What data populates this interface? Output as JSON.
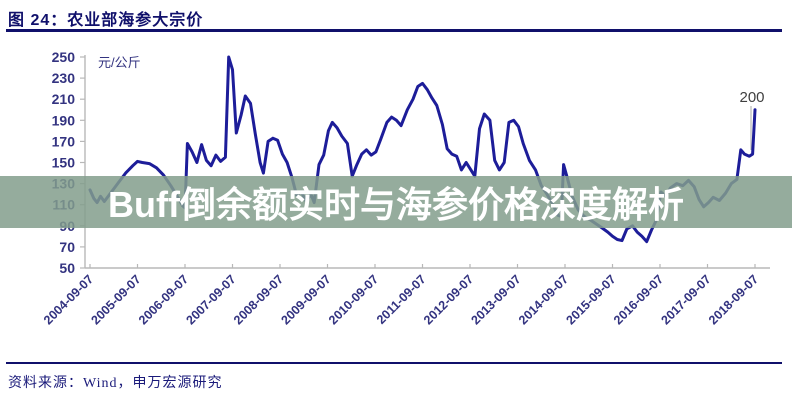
{
  "header": {
    "title": "图 24：农业部海参大宗价"
  },
  "overlay": {
    "text": "Buff倒余额实时与海参价格深度解析",
    "band_color": "#839e8c",
    "text_color": "#ffffff"
  },
  "footer": {
    "source": "资料来源：Wind，申万宏源研究"
  },
  "colors": {
    "line": "#1d1d99",
    "axis": "#b8b8b8",
    "tick_label": "#333380",
    "navy": "#10106b",
    "data_label": "#3f3f3f",
    "leader": "#aaaaaa"
  },
  "chart_data": {
    "type": "line",
    "title": "农业部海参大宗价",
    "ylabel": "元/公斤",
    "ylim": [
      50,
      250
    ],
    "yticks": [
      250,
      230,
      210,
      190,
      170,
      150,
      130,
      110,
      90,
      70,
      50
    ],
    "xticks": [
      "2004-09-07",
      "2005-09-07",
      "2006-09-07",
      "2007-09-07",
      "2008-09-07",
      "2009-09-07",
      "2010-09-07",
      "2011-09-07",
      "2012-09-07",
      "2013-09-07",
      "2014-09-07",
      "2015-09-07",
      "2016-09-07",
      "2017-09-07",
      "2018-09-07"
    ],
    "grid": false,
    "legend": "none",
    "end_label": {
      "text": "200",
      "value": 200
    },
    "series": [
      {
        "name": "农业部海参大宗价 (元/公斤)",
        "points": [
          [
            0,
            124
          ],
          [
            0.08,
            116
          ],
          [
            0.15,
            112
          ],
          [
            0.22,
            118
          ],
          [
            0.3,
            113
          ],
          [
            0.45,
            122
          ],
          [
            0.6,
            131
          ],
          [
            0.75,
            140
          ],
          [
            0.9,
            147
          ],
          [
            1.0,
            151
          ],
          [
            1.1,
            150
          ],
          [
            1.25,
            149
          ],
          [
            1.4,
            145
          ],
          [
            1.55,
            138
          ],
          [
            1.7,
            128
          ],
          [
            1.85,
            117
          ],
          [
            1.95,
            109
          ],
          [
            2.0,
            107
          ],
          [
            2.05,
            168
          ],
          [
            2.15,
            160
          ],
          [
            2.25,
            150
          ],
          [
            2.35,
            167
          ],
          [
            2.45,
            152
          ],
          [
            2.55,
            147
          ],
          [
            2.65,
            157
          ],
          [
            2.75,
            151
          ],
          [
            2.85,
            155
          ],
          [
            2.92,
            250
          ],
          [
            3.0,
            238
          ],
          [
            3.08,
            178
          ],
          [
            3.18,
            195
          ],
          [
            3.27,
            213
          ],
          [
            3.38,
            206
          ],
          [
            3.48,
            177
          ],
          [
            3.58,
            150
          ],
          [
            3.65,
            140
          ],
          [
            3.75,
            170
          ],
          [
            3.85,
            173
          ],
          [
            3.95,
            171
          ],
          [
            4.05,
            158
          ],
          [
            4.15,
            150
          ],
          [
            4.25,
            136
          ],
          [
            4.35,
            119
          ],
          [
            4.45,
            122
          ],
          [
            4.55,
            113
          ],
          [
            4.65,
            120
          ],
          [
            4.72,
            112
          ],
          [
            4.82,
            148
          ],
          [
            4.92,
            157
          ],
          [
            5.02,
            180
          ],
          [
            5.1,
            188
          ],
          [
            5.2,
            183
          ],
          [
            5.3,
            175
          ],
          [
            5.42,
            168
          ],
          [
            5.52,
            137
          ],
          [
            5.62,
            148
          ],
          [
            5.72,
            158
          ],
          [
            5.82,
            162
          ],
          [
            5.92,
            157
          ],
          [
            6.02,
            160
          ],
          [
            6.12,
            172
          ],
          [
            6.25,
            188
          ],
          [
            6.35,
            193
          ],
          [
            6.45,
            190
          ],
          [
            6.55,
            185
          ],
          [
            6.68,
            200
          ],
          [
            6.8,
            210
          ],
          [
            6.9,
            222
          ],
          [
            7.0,
            225
          ],
          [
            7.1,
            219
          ],
          [
            7.2,
            211
          ],
          [
            7.3,
            204
          ],
          [
            7.42,
            186
          ],
          [
            7.52,
            163
          ],
          [
            7.62,
            158
          ],
          [
            7.72,
            156
          ],
          [
            7.82,
            143
          ],
          [
            7.92,
            150
          ],
          [
            8.02,
            143
          ],
          [
            8.1,
            137
          ],
          [
            8.2,
            182
          ],
          [
            8.3,
            196
          ],
          [
            8.42,
            190
          ],
          [
            8.52,
            152
          ],
          [
            8.62,
            143
          ],
          [
            8.72,
            150
          ],
          [
            8.82,
            188
          ],
          [
            8.92,
            190
          ],
          [
            9.02,
            184
          ],
          [
            9.12,
            168
          ],
          [
            9.25,
            152
          ],
          [
            9.38,
            143
          ],
          [
            9.5,
            128
          ],
          [
            9.62,
            120
          ],
          [
            9.75,
            110
          ],
          [
            9.85,
            100
          ],
          [
            9.92,
            99
          ],
          [
            9.97,
            148
          ],
          [
            10.05,
            135
          ],
          [
            10.15,
            118
          ],
          [
            10.28,
            105
          ],
          [
            10.4,
            99
          ],
          [
            10.52,
            96
          ],
          [
            10.65,
            92
          ],
          [
            10.78,
            88
          ],
          [
            10.9,
            84
          ],
          [
            11.0,
            80
          ],
          [
            11.1,
            77
          ],
          [
            11.2,
            76
          ],
          [
            11.3,
            87
          ],
          [
            11.42,
            90
          ],
          [
            11.52,
            84
          ],
          [
            11.62,
            80
          ],
          [
            11.72,
            75
          ],
          [
            11.82,
            86
          ],
          [
            11.92,
            95
          ],
          [
            12.02,
            122
          ],
          [
            12.12,
            118
          ],
          [
            12.22,
            126
          ],
          [
            12.35,
            130
          ],
          [
            12.48,
            128
          ],
          [
            12.6,
            133
          ],
          [
            12.72,
            127
          ],
          [
            12.82,
            115
          ],
          [
            12.92,
            108
          ],
          [
            13.02,
            112
          ],
          [
            13.12,
            117
          ],
          [
            13.25,
            114
          ],
          [
            13.38,
            121
          ],
          [
            13.5,
            130
          ],
          [
            13.62,
            134
          ],
          [
            13.7,
            162
          ],
          [
            13.78,
            158
          ],
          [
            13.88,
            156
          ],
          [
            13.95,
            158
          ],
          [
            14.0,
            200
          ]
        ]
      }
    ]
  }
}
